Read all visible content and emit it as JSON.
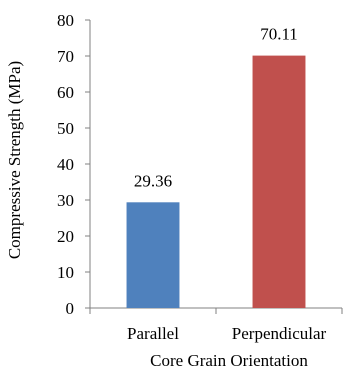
{
  "chart_data": {
    "type": "bar",
    "categories": [
      "Parallel",
      "Perpendicular"
    ],
    "series": [
      {
        "values": [
          29.36,
          70.11
        ],
        "data_labels": [
          "29.36",
          "70.11"
        ],
        "colors": [
          "#4F81BD",
          "#C0504D"
        ]
      }
    ],
    "title": "",
    "xlabel": "Core Grain Orientation",
    "ylabel": "Compressive Strength (MPa)",
    "ylim": [
      0,
      80
    ],
    "yticks": [
      0,
      10,
      20,
      30,
      40,
      50,
      60,
      70,
      80
    ],
    "ytick_labels": [
      "0",
      "10",
      "20",
      "30",
      "40",
      "50",
      "60",
      "70",
      "80"
    ],
    "grid": false,
    "legend": "none"
  }
}
